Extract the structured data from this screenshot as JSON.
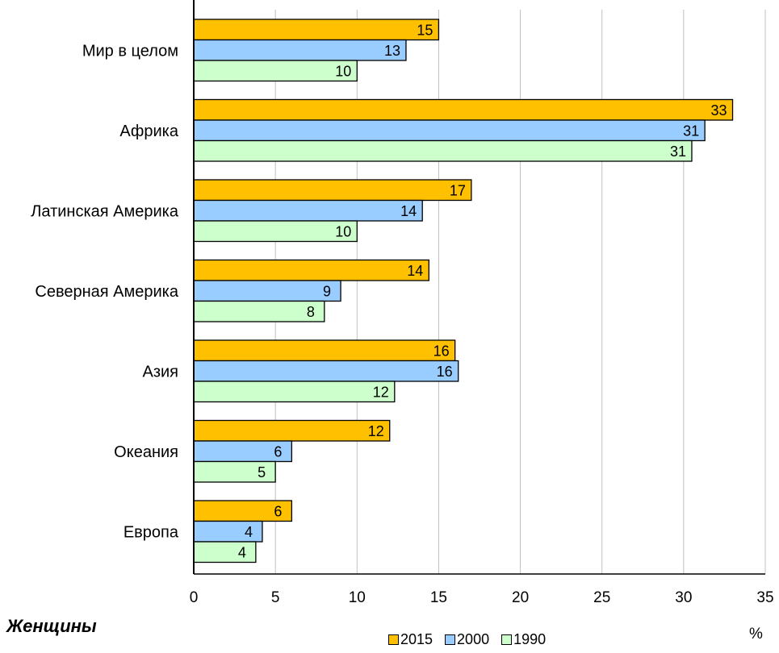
{
  "chart_data": {
    "type": "bar",
    "orientation": "horizontal",
    "categories": [
      "Мир в целом",
      "Африка",
      "Латинская Америка",
      "Северная Америка",
      "Азия",
      "Океания",
      "Европа"
    ],
    "series": [
      {
        "name": "2015",
        "color": "#FFC000",
        "values": [
          15,
          33,
          17,
          14.4,
          16,
          12,
          6
        ],
        "labels": [
          "15",
          "33",
          "17",
          "14",
          "16",
          "12",
          "6"
        ]
      },
      {
        "name": "2000",
        "color": "#99CCFF",
        "values": [
          13,
          31.3,
          14,
          9,
          16.2,
          6,
          4.2
        ],
        "labels": [
          "13",
          "31",
          "14",
          "9",
          "16",
          "6",
          "4"
        ]
      },
      {
        "name": "1990",
        "color": "#CCFFCC",
        "values": [
          10,
          30.5,
          10,
          8,
          12.3,
          5,
          3.8
        ],
        "labels": [
          "10",
          "31",
          "10",
          "8",
          "12",
          "5",
          "4"
        ]
      }
    ],
    "xlim": [
      0,
      35
    ],
    "xticks": [
      "0",
      "5",
      "10",
      "15",
      "20",
      "25",
      "30",
      "35"
    ],
    "grid": true,
    "legend_position": "bottom",
    "xlabel": "%",
    "caption": "Женщины"
  }
}
